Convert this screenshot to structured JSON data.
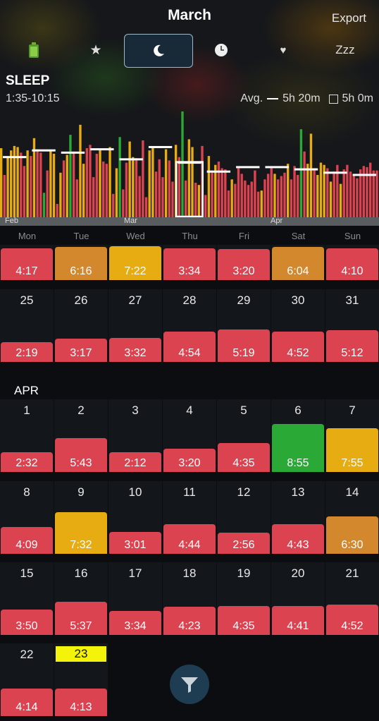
{
  "colors": {
    "red": "#dc4350",
    "orange": "#d3882d",
    "yellow": "#e6ac12",
    "green": "#2aa937",
    "today": "#f4f40a"
  },
  "header": {
    "title": "March",
    "export_label": "Export",
    "icons": [
      {
        "name": "battery-icon",
        "glyph": "🔋"
      },
      {
        "name": "star-icon",
        "glyph": "★"
      },
      {
        "name": "moon-icon",
        "glyph": "☾",
        "selected": true
      },
      {
        "name": "clock-icon",
        "glyph": "🕐"
      },
      {
        "name": "heart-icon",
        "glyph": "♥"
      },
      {
        "name": "zzz-icon",
        "glyph": "Zzz"
      }
    ]
  },
  "summary": {
    "metric": "SLEEP",
    "range": "1:35-10:15",
    "avg_label": "Avg.",
    "avg_value": "5h 20m",
    "goal_value": "5h 0m"
  },
  "chart_data": {
    "type": "bar",
    "month_labels": [
      "Feb",
      "Mar",
      "Apr"
    ],
    "value_unit": "hours",
    "values": [
      6.2,
      3.8,
      5.4,
      6.0,
      6.4,
      6.3,
      5.8,
      4.6,
      6.0,
      5.5,
      7.1,
      6.1,
      5.8,
      2.2,
      4.2,
      6.0,
      5.7,
      1.2,
      4.0,
      5.1,
      5.6,
      7.4,
      5.9,
      3.4,
      8.3,
      4.8,
      6.2,
      6.5,
      3.6,
      5.7,
      6.1,
      5.0,
      4.8,
      6.3,
      2.1,
      4.4,
      7.2,
      2.5,
      4.9,
      6.8,
      5.4,
      5.3,
      3.7,
      6.9,
      1.8,
      6.0,
      6.3,
      4.1,
      5.2,
      3.6,
      6.1,
      5.1,
      3.2,
      6.5,
      5.4,
      9.5,
      3.3,
      7.0,
      6.3,
      3.1,
      2.9,
      6.4,
      2.0,
      5.5,
      4.2,
      4.7,
      5.0,
      4.4,
      4.3,
      2.4,
      3.4,
      3.0,
      4.5,
      3.9,
      3.3,
      2.9,
      3.2,
      4.2,
      2.3,
      2.4,
      3.4,
      3.9,
      4.5,
      3.9,
      3.4,
      3.7,
      4.0,
      4.8,
      3.4,
      4.6,
      3.8,
      7.9,
      5.9,
      4.8,
      7.5,
      4.4,
      3.8,
      4.9,
      4.7,
      4.4,
      3.2,
      4.1,
      4.7,
      3.0,
      4.3,
      4.7,
      4.1,
      3.8,
      3.5,
      4.3,
      4.6,
      4.5,
      4.9,
      4.2,
      4.2
    ],
    "colors": [
      "yellow",
      "red",
      "yellow",
      "yellow",
      "yellow",
      "yellow",
      "red",
      "red",
      "yellow",
      "red",
      "yellow",
      "red",
      "red",
      "green",
      "red",
      "yellow",
      "yellow",
      "red",
      "yellow",
      "red",
      "yellow",
      "green",
      "red",
      "red",
      "yellow",
      "yellow",
      "red",
      "red",
      "red",
      "red",
      "yellow",
      "red",
      "red",
      "yellow",
      "red",
      "yellow",
      "green",
      "red",
      "red",
      "yellow",
      "yellow",
      "red",
      "red",
      "red",
      "red",
      "yellow",
      "yellow",
      "red",
      "red",
      "red",
      "yellow",
      "red",
      "red",
      "yellow",
      "red",
      "green",
      "red",
      "yellow",
      "yellow",
      "red",
      "yellow",
      "red",
      "red",
      "yellow",
      "red",
      "yellow",
      "red",
      "red",
      "red",
      "red",
      "yellow",
      "red",
      "red",
      "red",
      "red",
      "red",
      "red",
      "red",
      "red",
      "yellow",
      "red",
      "red",
      "red",
      "yellow",
      "red",
      "red",
      "red",
      "yellow",
      "red",
      "red",
      "red",
      "green",
      "red",
      "yellow",
      "yellow",
      "red",
      "yellow",
      "yellow",
      "yellow",
      "red",
      "yellow",
      "red",
      "red",
      "yellow",
      "red",
      "red",
      "red",
      "red",
      "red",
      "red",
      "red",
      "red",
      "red",
      "red",
      "red"
    ],
    "weekly_avg": [
      5.4,
      6.0,
      5.8,
      6.1,
      5.2,
      6.3,
      4.9,
      4.1,
      4.5,
      4.5,
      4.3,
      4.0,
      3.8
    ],
    "selected_week_index": 6
  },
  "weekdays": [
    "Mon",
    "Tue",
    "Wed",
    "Thu",
    "Fri",
    "Sat",
    "Sun"
  ],
  "calendar": {
    "april_label": "APR",
    "weeks": [
      [
        {
          "day": "",
          "value": "4:17",
          "hours": 4.28,
          "color": "red"
        },
        {
          "day": "",
          "value": "6:16",
          "hours": 6.27,
          "color": "orange"
        },
        {
          "day": "",
          "value": "7:22",
          "hours": 7.37,
          "color": "yellow"
        },
        {
          "day": "",
          "value": "3:34",
          "hours": 3.57,
          "color": "red"
        },
        {
          "day": "",
          "value": "3:20",
          "hours": 3.33,
          "color": "red"
        },
        {
          "day": "",
          "value": "6:04",
          "hours": 6.07,
          "color": "orange"
        },
        {
          "day": "",
          "value": "4:10",
          "hours": 4.17,
          "color": "red"
        }
      ],
      [
        {
          "day": "25",
          "value": "2:19",
          "hours": 2.32,
          "color": "red"
        },
        {
          "day": "26",
          "value": "3:17",
          "hours": 3.28,
          "color": "red"
        },
        {
          "day": "27",
          "value": "3:32",
          "hours": 3.53,
          "color": "red"
        },
        {
          "day": "28",
          "value": "4:54",
          "hours": 4.9,
          "color": "red"
        },
        {
          "day": "29",
          "value": "5:19",
          "hours": 5.32,
          "color": "red"
        },
        {
          "day": "30",
          "value": "4:52",
          "hours": 4.87,
          "color": "red"
        },
        {
          "day": "31",
          "value": "5:12",
          "hours": 5.2,
          "color": "red"
        }
      ],
      [
        {
          "day": "1",
          "value": "2:32",
          "hours": 2.53,
          "color": "red"
        },
        {
          "day": "2",
          "value": "5:43",
          "hours": 5.72,
          "color": "red"
        },
        {
          "day": "3",
          "value": "2:12",
          "hours": 2.2,
          "color": "red"
        },
        {
          "day": "4",
          "value": "3:20",
          "hours": 3.33,
          "color": "red"
        },
        {
          "day": "5",
          "value": "4:35",
          "hours": 4.58,
          "color": "red"
        },
        {
          "day": "6",
          "value": "8:55",
          "hours": 8.92,
          "color": "green"
        },
        {
          "day": "7",
          "value": "7:55",
          "hours": 7.92,
          "color": "yellow"
        }
      ],
      [
        {
          "day": "8",
          "value": "4:09",
          "hours": 4.15,
          "color": "red"
        },
        {
          "day": "9",
          "value": "7:32",
          "hours": 7.53,
          "color": "yellow"
        },
        {
          "day": "10",
          "value": "3:01",
          "hours": 3.02,
          "color": "red"
        },
        {
          "day": "11",
          "value": "4:44",
          "hours": 4.73,
          "color": "red"
        },
        {
          "day": "12",
          "value": "2:56",
          "hours": 2.93,
          "color": "red"
        },
        {
          "day": "13",
          "value": "4:43",
          "hours": 4.72,
          "color": "red"
        },
        {
          "day": "14",
          "value": "6:30",
          "hours": 6.5,
          "color": "orange"
        }
      ],
      [
        {
          "day": "15",
          "value": "3:50",
          "hours": 3.83,
          "color": "red"
        },
        {
          "day": "16",
          "value": "5:37",
          "hours": 5.62,
          "color": "red"
        },
        {
          "day": "17",
          "value": "3:34",
          "hours": 3.57,
          "color": "red"
        },
        {
          "day": "18",
          "value": "4:23",
          "hours": 4.38,
          "color": "red"
        },
        {
          "day": "19",
          "value": "4:35",
          "hours": 4.58,
          "color": "red"
        },
        {
          "day": "20",
          "value": "4:41",
          "hours": 4.68,
          "color": "red"
        },
        {
          "day": "21",
          "value": "4:52",
          "hours": 4.87,
          "color": "red"
        }
      ],
      [
        {
          "day": "22",
          "value": "4:14",
          "hours": 4.23,
          "color": "red"
        },
        {
          "day": "23",
          "value": "4:13",
          "hours": 4.22,
          "color": "red",
          "today": true
        }
      ]
    ]
  },
  "filter": {
    "icon": "filter-icon"
  }
}
